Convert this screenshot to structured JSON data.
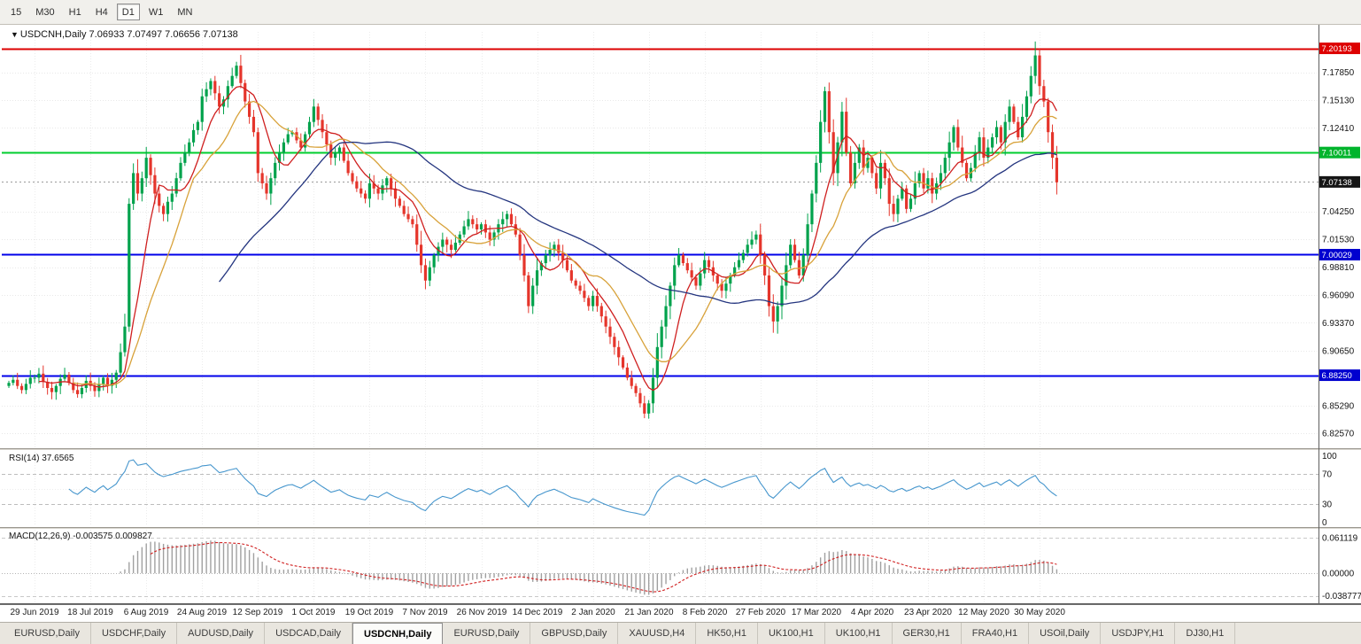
{
  "icons": {
    "collapse": "▼"
  },
  "toolbar": {
    "timeframes": [
      "15",
      "M30",
      "H1",
      "H4",
      "D1",
      "W1",
      "MN"
    ],
    "active": "D1"
  },
  "chart": {
    "symbol_title": "USDCNH,Daily",
    "ohlc_text": "7.06933 7.07497 7.06656 7.07138"
  },
  "indicators": {
    "rsi_header": "RSI(14) 37.6565",
    "macd_header": "MACD(12,26,9) -0.003575 0.009827"
  },
  "price_axis": {
    "ticks": [
      "7.17850",
      "7.15130",
      "7.12410",
      "7.04250",
      "7.01530",
      "6.98810",
      "6.96090",
      "6.93370",
      "6.90650",
      "6.85290",
      "6.82570"
    ],
    "badges": [
      {
        "text": "7.20193",
        "color": "#dd0000"
      },
      {
        "text": "7.10011",
        "color": "#00b42c"
      },
      {
        "text": "7.07138",
        "color": "#151515"
      },
      {
        "text": "7.00029",
        "color": "#0000cf"
      },
      {
        "text": "6.88250",
        "color": "#0000cf"
      }
    ]
  },
  "rsi_axis": {
    "ticks": [
      "100",
      "70",
      "30",
      "0"
    ]
  },
  "macd_axis": {
    "ticks": [
      "0.061119",
      "0.00000",
      "-0.038777"
    ]
  },
  "x_axis": {
    "labels": [
      "29 Jun 2019",
      "18 Jul 2019",
      "6 Aug 2019",
      "24 Aug 2019",
      "12 Sep 2019",
      "1 Oct 2019",
      "19 Oct 2019",
      "7 Nov 2019",
      "26 Nov 2019",
      "14 Dec 2019",
      "2 Jan 2020",
      "21 Jan 2020",
      "8 Feb 2020",
      "27 Feb 2020",
      "17 Mar 2020",
      "4 Apr 2020",
      "23 Apr 2020",
      "12 May 2020",
      "30 May 2020"
    ],
    "label_start_index": 6,
    "label_step": 13
  },
  "tabs": {
    "active_index": 4,
    "items": [
      "EURUSD,Daily",
      "USDCHF,Daily",
      "AUDUSD,Daily",
      "USDCAD,Daily",
      "USDCNH,Daily",
      "EURUSD,Daily",
      "GBPUSD,Daily",
      "XAUUSD,H4",
      "HK50,H1",
      "UK100,H1",
      "UK100,H1",
      "GER30,H1",
      "FRA40,H1",
      "USOil,Daily",
      "USDJPY,H1",
      "DJ30,H1"
    ],
    "colors_note": "see colors"
  },
  "colors": {
    "candle_up": "#00a24c",
    "candle_down": "#e5352b",
    "ma_fast": "#cf1f1f",
    "ma_mid": "#d8a23a",
    "ma_slow": "#24357f",
    "rsi_line": "#4696cd",
    "macd_hist": "#a0a0a0",
    "macd_signal": "#d02020",
    "level_red": "#dd0000",
    "level_green": "#00ce2e",
    "level_blue": "#0000ea"
  },
  "chart_data": {
    "type": "candlestick",
    "symbol": "USDCNH",
    "timeframe": "Daily",
    "title": "USDCNH,Daily",
    "ohlc_current": {
      "open": 7.06933,
      "high": 7.07497,
      "low": 7.06656,
      "close": 7.07138
    },
    "ylim": [
      6.812,
      7.218
    ],
    "levels": [
      {
        "value": 7.20193,
        "color": "#dd0000"
      },
      {
        "value": 7.10011,
        "color": "#00ce2e"
      },
      {
        "value": 7.00029,
        "color": "#0000ea"
      },
      {
        "value": 6.8825,
        "color": "#0000ea"
      }
    ],
    "current_price": {
      "value": 7.07138,
      "badge_color": "#151515"
    },
    "closes": [
      6.875,
      6.878,
      6.872,
      6.868,
      6.874,
      6.88,
      6.88,
      6.884,
      6.876,
      6.87,
      6.866,
      6.872,
      6.879,
      6.883,
      6.875,
      6.868,
      6.864,
      6.87,
      6.877,
      6.872,
      6.867,
      6.874,
      6.88,
      6.872,
      6.878,
      6.885,
      6.905,
      6.93,
      7.05,
      7.08,
      7.06,
      7.075,
      7.095,
      7.078,
      7.06,
      7.048,
      7.04,
      7.052,
      7.06,
      7.075,
      7.09,
      7.1,
      7.11,
      7.122,
      7.13,
      7.155,
      7.162,
      7.17,
      7.158,
      7.145,
      7.152,
      7.165,
      7.175,
      7.185,
      7.168,
      7.15,
      7.135,
      7.12,
      7.08,
      7.07,
      7.06,
      7.075,
      7.09,
      7.1,
      7.11,
      7.118,
      7.12,
      7.112,
      7.105,
      7.118,
      7.13,
      7.145,
      7.132,
      7.12,
      7.108,
      7.095,
      7.1,
      7.105,
      7.092,
      7.08,
      7.072,
      7.065,
      7.06,
      7.055,
      7.07,
      7.065,
      7.06,
      7.068,
      7.075,
      7.065,
      7.055,
      7.048,
      7.04,
      7.035,
      7.03,
      7.01,
      6.99,
      6.975,
      6.988,
      7.0,
      7.008,
      7.015,
      7.01,
      7.005,
      7.012,
      7.02,
      7.028,
      7.035,
      7.03,
      7.025,
      7.03,
      7.022,
      7.015,
      7.022,
      7.03,
      7.035,
      7.04,
      7.03,
      7.02,
      7.0,
      6.98,
      6.95,
      6.97,
      6.985,
      6.992,
      7.0,
      7.005,
      7.01,
      7.002,
      6.995,
      6.985,
      6.975,
      6.97,
      6.965,
      6.958,
      6.95,
      6.96,
      6.95,
      6.94,
      6.93,
      6.92,
      6.91,
      6.9,
      6.89,
      6.88,
      6.872,
      6.865,
      6.855,
      6.845,
      6.855,
      6.88,
      6.91,
      6.93,
      6.95,
      6.97,
      6.99,
      7.0,
      6.992,
      6.985,
      6.978,
      6.97,
      6.982,
      6.995,
      6.988,
      6.98,
      6.972,
      6.965,
      6.972,
      6.98,
      6.988,
      6.995,
      7.002,
      7.01,
      7.015,
      7.02,
      7.0,
      6.98,
      6.95,
      6.935,
      6.95,
      6.97,
      6.99,
      7.01,
      6.995,
      6.98,
      7.0,
      7.03,
      7.06,
      7.09,
      7.13,
      7.16,
      7.12,
      7.08,
      7.11,
      7.14,
      7.1,
      7.07,
      7.09,
      7.105,
      7.085,
      7.095,
      7.08,
      7.065,
      7.09,
      7.075,
      7.05,
      7.04,
      7.055,
      7.065,
      7.045,
      7.055,
      7.07,
      7.08,
      7.065,
      7.075,
      7.06,
      7.07,
      7.08,
      7.095,
      7.11,
      7.125,
      7.105,
      7.09,
      7.075,
      7.085,
      7.1,
      7.115,
      7.095,
      7.105,
      7.115,
      7.125,
      7.11,
      7.13,
      7.145,
      7.13,
      7.115,
      7.135,
      7.155,
      7.175,
      7.195,
      7.165,
      7.15,
      7.12,
      7.095,
      7.071
    ],
    "indicators": {
      "moving_averages": [
        {
          "period": 8,
          "color": "#cf1f1f"
        },
        {
          "period": 16,
          "color": "#d8a23a"
        },
        {
          "period": 50,
          "color": "#24357f"
        }
      ],
      "rsi": {
        "period": 14,
        "current": 37.6565,
        "levels": [
          70,
          30
        ]
      },
      "macd": {
        "fast": 12,
        "slow": 26,
        "signal": 9,
        "current_macd": -0.003575,
        "current_signal": 0.009827
      }
    }
  }
}
